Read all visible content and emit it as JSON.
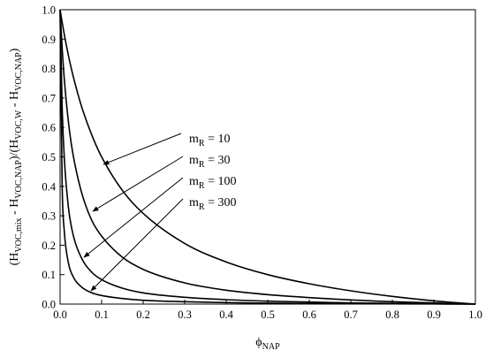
{
  "chart_data": {
    "type": "line",
    "xlim": [
      0,
      1
    ],
    "ylim": [
      0,
      1
    ],
    "x_ticks": [
      "0.0",
      "0.1",
      "0.2",
      "0.3",
      "0.4",
      "0.5",
      "0.6",
      "0.7",
      "0.8",
      "0.9",
      "1.0"
    ],
    "y_ticks": [
      "0.0",
      "0.1",
      "0.2",
      "0.3",
      "0.4",
      "0.5",
      "0.6",
      "0.7",
      "0.8",
      "0.9",
      "1.0"
    ],
    "xlabel": {
      "main": "ϕ",
      "sub": "NAP"
    },
    "ylabel": {
      "parts": [
        {
          "t": "(H"
        },
        {
          "t": "VOC,mix",
          "sub": true
        },
        {
          "t": " - H"
        },
        {
          "t": "VOC,NAP",
          "sub": true
        },
        {
          "t": ")/(H"
        },
        {
          "t": "VOC,W",
          "sub": true
        },
        {
          "t": " - H"
        },
        {
          "t": "VOC,NAP",
          "sub": true
        },
        {
          "t": ")"
        }
      ]
    },
    "grid": false,
    "legend": "none",
    "x": [
      0,
      0.005,
      0.01,
      0.02,
      0.03,
      0.05,
      0.075,
      0.1,
      0.15,
      0.2,
      0.3,
      0.4,
      0.5,
      0.6,
      0.7,
      0.8,
      0.9,
      0.95,
      1.0
    ],
    "series": [
      {
        "annotation": {
          "main": "m",
          "sub": "R",
          "rest": " = 10"
        },
        "values": [
          1.0,
          0.957,
          0.917,
          0.845,
          0.783,
          0.679,
          0.579,
          0.5,
          0.386,
          0.308,
          0.206,
          0.143,
          0.1,
          0.069,
          0.045,
          0.026,
          0.011,
          0.005,
          0.0
        ]
      },
      {
        "annotation": {
          "main": "m",
          "sub": "R",
          "rest": " = 30"
        },
        "values": [
          1.0,
          0.869,
          0.767,
          0.62,
          0.518,
          0.388,
          0.288,
          0.231,
          0.159,
          0.118,
          0.072,
          0.047,
          0.032,
          0.022,
          0.014,
          0.008,
          0.004,
          0.002,
          0.0
        ]
      },
      {
        "annotation": {
          "main": "m",
          "sub": "R",
          "rest": " = 100"
        },
        "values": [
          1.0,
          0.668,
          0.5,
          0.329,
          0.244,
          0.161,
          0.11,
          0.083,
          0.054,
          0.038,
          0.023,
          0.015,
          0.01,
          0.007,
          0.004,
          0.0025,
          0.0011,
          0.0005,
          0.0
        ]
      },
      {
        "annotation": {
          "main": "m",
          "sub": "R",
          "rest": " = 300"
        },
        "values": [
          1.0,
          0.402,
          0.25,
          0.14,
          0.097,
          0.06,
          0.039,
          0.029,
          0.019,
          0.013,
          0.008,
          0.005,
          0.0033,
          0.0022,
          0.0014,
          0.0008,
          0.0004,
          0.0002,
          0.0
        ]
      }
    ]
  }
}
